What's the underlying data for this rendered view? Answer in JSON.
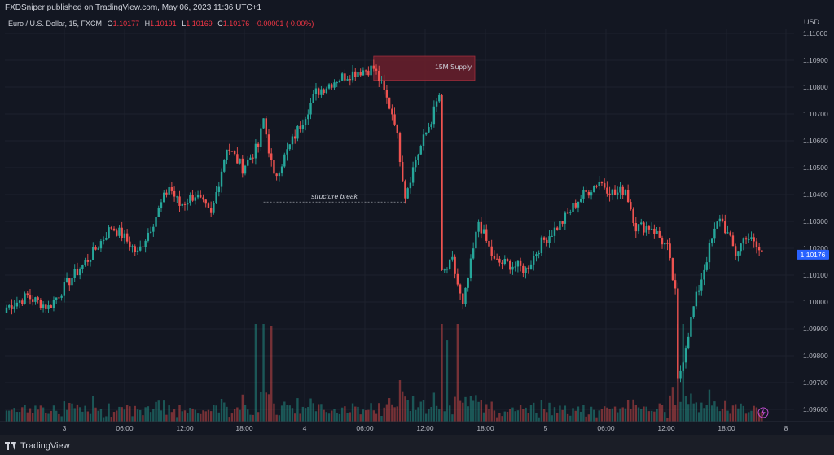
{
  "header": {
    "publish_line": "FXDSniper published on TradingView.com, May 06, 2023 11:36 UTC+1"
  },
  "legend": {
    "symbol": "Euro / U.S. Dollar, 15, FXCM",
    "open_label": "O",
    "open": "1.10177",
    "high_label": "H",
    "high": "1.10191",
    "low_label": "L",
    "low": "1.10169",
    "close_label": "C",
    "close": "1.10176",
    "change": "-0.00001 (-0.00%)"
  },
  "footer": {
    "brand": "TradingView"
  },
  "chart_data": {
    "type": "candlestick",
    "currency": "USD",
    "last_price_label": "1.10176",
    "y_ticks": [
      "1.11000",
      "1.10900",
      "1.10800",
      "1.10700",
      "1.10600",
      "1.10500",
      "1.10400",
      "1.10300",
      "1.10200",
      "1.10100",
      "1.10000",
      "1.09900",
      "1.09800",
      "1.09700",
      "1.09600"
    ],
    "y_range": [
      1.0955,
      1.1107
    ],
    "x_ticks": [
      "3",
      "06:00",
      "12:00",
      "18:00",
      "4",
      "06:00",
      "12:00",
      "18:00",
      "5",
      "06:00",
      "12:00",
      "18:00",
      "8"
    ],
    "annotations": [
      {
        "type": "zone",
        "label": "15M Supply",
        "price_top": 1.10915,
        "price_bottom": 1.10825,
        "start_bar": 140,
        "end_bar": 178
      },
      {
        "type": "dashed-line",
        "label": "structure break",
        "price": 1.10372,
        "start_bar": 98,
        "end_bar": 152
      }
    ],
    "colors": {
      "up": "#26a69a",
      "down": "#ef5350",
      "zone": "#6b1f2c",
      "background": "#131722",
      "grid": "#1e222d",
      "last_price_bg": "#2962ff"
    },
    "path_keypoints": [
      [
        0,
        1.0998
      ],
      [
        8,
        1.1002
      ],
      [
        16,
        1.0998
      ],
      [
        24,
        1.1008
      ],
      [
        32,
        1.1017
      ],
      [
        40,
        1.1028
      ],
      [
        44,
        1.1025
      ],
      [
        50,
        1.1018
      ],
      [
        56,
        1.103
      ],
      [
        62,
        1.1043
      ],
      [
        66,
        1.1036
      ],
      [
        72,
        1.104
      ],
      [
        78,
        1.1032
      ],
      [
        84,
        1.1058
      ],
      [
        90,
        1.105
      ],
      [
        96,
        1.1058
      ],
      [
        98,
        1.1068
      ],
      [
        102,
        1.1046
      ],
      [
        110,
        1.1062
      ],
      [
        118,
        1.1078
      ],
      [
        126,
        1.1083
      ],
      [
        134,
        1.1086
      ],
      [
        140,
        1.1087
      ],
      [
        142,
        1.1083
      ],
      [
        148,
        1.1068
      ],
      [
        152,
        1.104
      ],
      [
        156,
        1.1053
      ],
      [
        162,
        1.1068
      ],
      [
        165,
        1.1077
      ],
      [
        166,
        1.101
      ],
      [
        170,
        1.1015
      ],
      [
        174,
        1.0998
      ],
      [
        180,
        1.103
      ],
      [
        186,
        1.1015
      ],
      [
        192,
        1.1014
      ],
      [
        198,
        1.1012
      ],
      [
        204,
        1.1022
      ],
      [
        212,
        1.103
      ],
      [
        218,
        1.1038
      ],
      [
        226,
        1.1045
      ],
      [
        232,
        1.104
      ],
      [
        236,
        1.1042
      ],
      [
        240,
        1.1028
      ],
      [
        246,
        1.1028
      ],
      [
        252,
        1.102
      ],
      [
        255,
        1.1003
      ],
      [
        256,
        1.097
      ],
      [
        262,
        1.0998
      ],
      [
        268,
        1.102
      ],
      [
        272,
        1.1032
      ],
      [
        278,
        1.1018
      ],
      [
        282,
        1.1025
      ],
      [
        288,
        1.1018
      ]
    ],
    "ohlc_note": "Candles reconstructed from the keypoint path (15-minute bars, May 3-5 2023)"
  }
}
